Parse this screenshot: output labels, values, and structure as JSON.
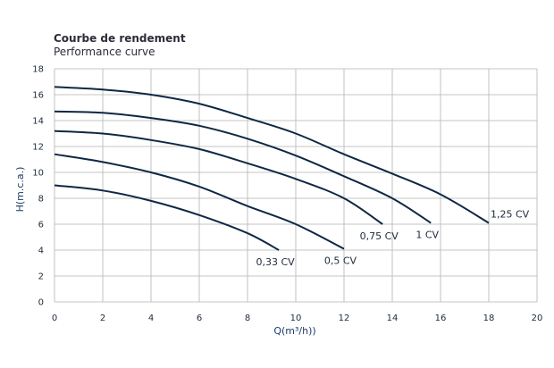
{
  "title": "Courbe de rendement",
  "subtitle": "Performance curve",
  "chart_data": {
    "type": "line",
    "xlabel": "Q(m³/h))",
    "ylabel": "H(m.c.a.)",
    "xlim": [
      0,
      20
    ],
    "ylim": [
      0,
      18
    ],
    "xticks": [
      0,
      2,
      4,
      6,
      8,
      10,
      12,
      14,
      16,
      18,
      20
    ],
    "yticks": [
      0,
      2,
      4,
      6,
      8,
      10,
      12,
      14,
      16,
      18
    ],
    "grid": true,
    "line_color": "#0f2744",
    "grid_color": "#b3b3b3",
    "series": [
      {
        "name": "0,33 CV",
        "points": [
          [
            0,
            9.0
          ],
          [
            2,
            8.6
          ],
          [
            4,
            7.8
          ],
          [
            6,
            6.7
          ],
          [
            8,
            5.3
          ],
          [
            9.3,
            4.0
          ]
        ]
      },
      {
        "name": "0,5 CV",
        "points": [
          [
            0,
            11.4
          ],
          [
            2,
            10.8
          ],
          [
            4,
            10.0
          ],
          [
            6,
            8.9
          ],
          [
            8,
            7.4
          ],
          [
            10,
            6.0
          ],
          [
            12,
            4.1
          ]
        ]
      },
      {
        "name": "0,75 CV",
        "points": [
          [
            0,
            13.2
          ],
          [
            2,
            13.0
          ],
          [
            4,
            12.5
          ],
          [
            6,
            11.8
          ],
          [
            8,
            10.7
          ],
          [
            10,
            9.5
          ],
          [
            12,
            8.0
          ],
          [
            13.6,
            6.0
          ]
        ]
      },
      {
        "name": "1 CV",
        "points": [
          [
            0,
            14.7
          ],
          [
            2,
            14.6
          ],
          [
            4,
            14.2
          ],
          [
            6,
            13.6
          ],
          [
            8,
            12.6
          ],
          [
            10,
            11.3
          ],
          [
            12,
            9.7
          ],
          [
            14,
            8.0
          ],
          [
            15.6,
            6.1
          ]
        ]
      },
      {
        "name": "1,25 CV",
        "points": [
          [
            0,
            16.6
          ],
          [
            2,
            16.4
          ],
          [
            4,
            16.0
          ],
          [
            6,
            15.3
          ],
          [
            8,
            14.2
          ],
          [
            10,
            13.0
          ],
          [
            12,
            11.4
          ],
          [
            14,
            9.9
          ],
          [
            16,
            8.3
          ],
          [
            18,
            6.1
          ]
        ]
      }
    ]
  }
}
